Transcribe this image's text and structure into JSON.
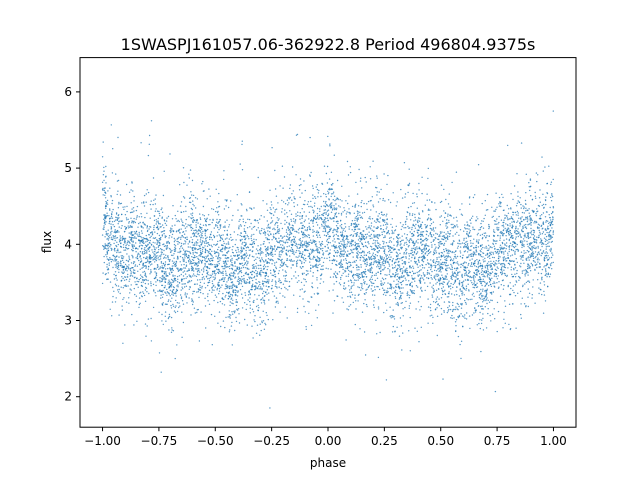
{
  "chart_data": {
    "type": "scatter",
    "title": "1SWASPJ161057.06-362922.8 Period 496804.9375s",
    "xlabel": "phase",
    "ylabel": "flux",
    "xlim": [
      -1.1,
      1.1
    ],
    "ylim": [
      1.6,
      6.45
    ],
    "x_ticks": [
      -1.0,
      -0.75,
      -0.5,
      -0.25,
      0.0,
      0.25,
      0.5,
      0.75,
      1.0
    ],
    "x_tick_labels": [
      "−1.00",
      "−0.75",
      "−0.50",
      "−0.25",
      "0.00",
      "0.25",
      "0.50",
      "0.75",
      "1.00"
    ],
    "y_ticks": [
      2,
      3,
      4,
      5,
      6
    ],
    "y_tick_labels": [
      "2",
      "3",
      "4",
      "5",
      "6"
    ],
    "grid": false,
    "legend": "none",
    "point_color": "#1f77b4",
    "series": [
      {
        "x": [
          -1.0,
          -0.975,
          -0.95,
          -0.925,
          -0.9,
          -0.875,
          -0.85,
          -0.825,
          -0.8,
          -0.775,
          -0.75,
          -0.725,
          -0.7,
          -0.675,
          -0.65,
          -0.625,
          -0.6,
          -0.575,
          -0.55,
          -0.525,
          -0.5,
          -0.475,
          -0.45,
          -0.425,
          -0.4,
          -0.375,
          -0.35,
          -0.325,
          -0.3,
          -0.275,
          -0.25,
          -0.225,
          -0.2,
          -0.175,
          -0.15,
          -0.125,
          -0.1,
          -0.075,
          -0.05,
          -0.025,
          0.0,
          0.025,
          0.05,
          0.075,
          0.1,
          0.125,
          0.15,
          0.175,
          0.2,
          0.225,
          0.25,
          0.275,
          0.3,
          0.325,
          0.35,
          0.375,
          0.4,
          0.425,
          0.45,
          0.475,
          0.5,
          0.525,
          0.55,
          0.575,
          0.6,
          0.625,
          0.65,
          0.675,
          0.7,
          0.725,
          0.75,
          0.775,
          0.8,
          0.825,
          0.85,
          0.875,
          0.9,
          0.925,
          0.95,
          0.975,
          1.0
        ],
        "y": [
          4.4,
          4.15,
          4.0,
          3.95,
          3.9,
          4.0,
          3.95,
          3.85,
          3.9,
          3.95,
          3.9,
          3.75,
          3.6,
          3.7,
          3.85,
          3.9,
          3.95,
          3.9,
          3.95,
          3.8,
          3.75,
          3.85,
          3.7,
          3.55,
          3.65,
          3.9,
          3.8,
          3.65,
          3.6,
          3.75,
          4.0,
          3.95,
          3.85,
          4.0,
          4.1,
          4.05,
          4.0,
          4.1,
          4.0,
          4.05,
          4.35,
          4.2,
          4.0,
          3.95,
          3.9,
          4.0,
          3.95,
          3.85,
          3.9,
          3.95,
          3.9,
          3.75,
          3.6,
          3.7,
          3.85,
          3.9,
          3.95,
          3.9,
          3.95,
          3.8,
          3.75,
          3.85,
          3.7,
          3.55,
          3.65,
          3.9,
          3.8,
          3.65,
          3.6,
          3.75,
          4.0,
          3.95,
          3.85,
          4.0,
          4.1,
          4.05,
          4.0,
          4.1,
          4.0,
          4.05,
          4.35
        ]
      }
    ]
  }
}
